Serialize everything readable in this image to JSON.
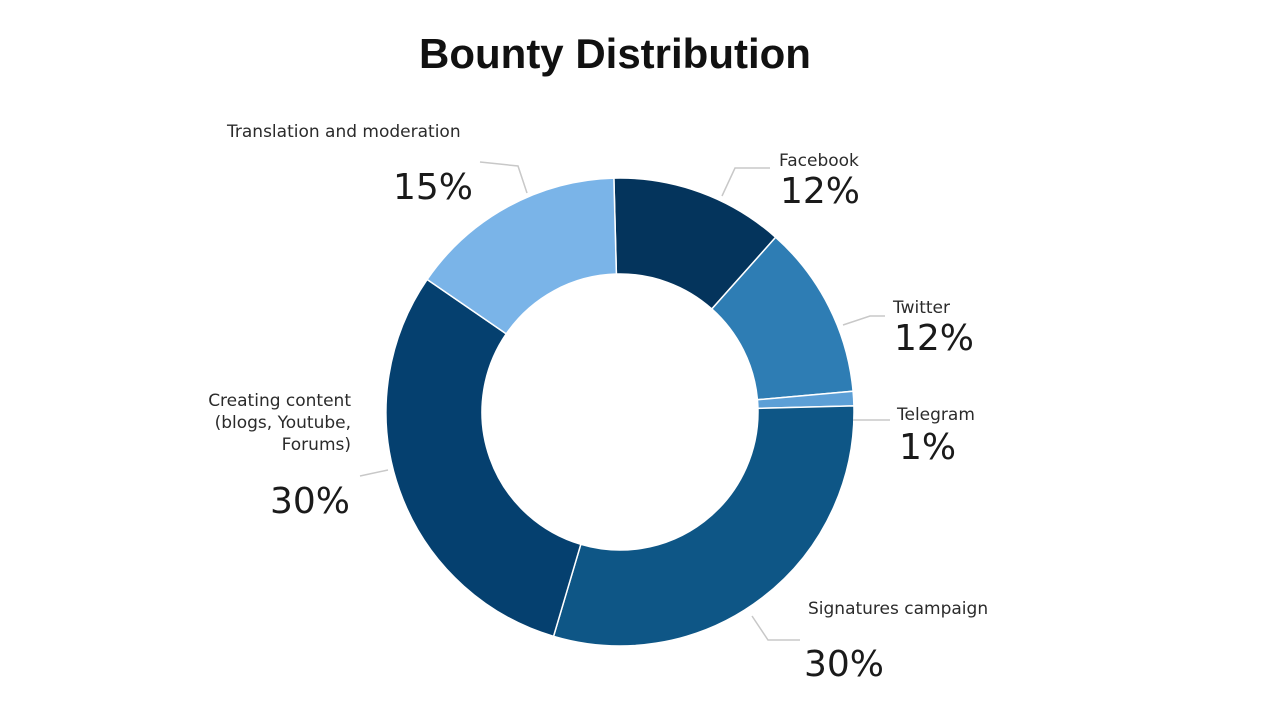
{
  "chart_data": {
    "type": "pie",
    "variant": "donut",
    "title": "Bounty Distribution",
    "slices": [
      {
        "label": "Facebook",
        "label_lines": [
          "Facebook"
        ],
        "value": 12,
        "value_label": "12%",
        "color": "#04345c"
      },
      {
        "label": "Twitter",
        "label_lines": [
          "Twitter"
        ],
        "value": 12,
        "value_label": "12%",
        "color": "#2e7db4"
      },
      {
        "label": "Telegram",
        "label_lines": [
          "Telegram"
        ],
        "value": 1,
        "value_label": "1%",
        "color": "#5c9fd6"
      },
      {
        "label": "Signatures campaign",
        "label_lines": [
          "Signatures campaign"
        ],
        "value": 30,
        "value_label": "30%",
        "color": "#0e5686"
      },
      {
        "label": "Creating content (blogs, Youtube, Forums)",
        "label_lines": [
          "Creating content",
          "(blogs, Youtube,",
          "Forums)"
        ],
        "value": 30,
        "value_label": "30%",
        "color": "#05406f"
      },
      {
        "label": "Translation and moderation",
        "label_lines": [
          "Translation and moderation"
        ],
        "value": 15,
        "value_label": "15%",
        "color": "#7ab4e8"
      }
    ],
    "legend": "none"
  }
}
